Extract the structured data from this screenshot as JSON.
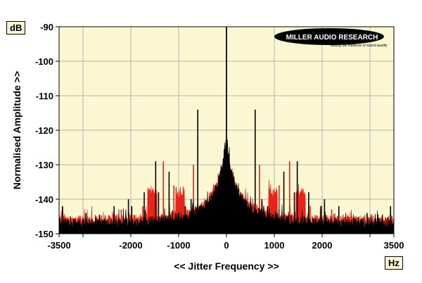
{
  "chart_data": {
    "type": "line",
    "xlabel": "<< Jitter Frequency >>",
    "ylabel": "Normalised Amplitude >>",
    "y_unit": "dB",
    "x_unit": "Hz",
    "xlim": [
      -3500,
      3500
    ],
    "ylim": [
      -150,
      -90
    ],
    "x_ticks": [
      -3500,
      -2000,
      -1000,
      0,
      1000,
      2000,
      3500
    ],
    "x_tick_labels": [
      "-3500",
      "-2000",
      "-1000",
      "0",
      "1000",
      "2000",
      "3500"
    ],
    "x_minor_ticks": [
      -3000,
      3000
    ],
    "y_ticks": [
      -90,
      -100,
      -110,
      -120,
      -130,
      -140,
      -150
    ],
    "y_tick_labels": [
      "-90",
      "-100",
      "-110",
      "-120",
      "-130",
      "-140",
      "-150"
    ],
    "grid": true,
    "background_color": "#fbf7d2",
    "grid_color": "#b4b4b4",
    "series": [
      {
        "color": "#e8231a",
        "noise_floor": -146,
        "skirt_peak": -125,
        "bands": [
          {
            "x": [
              -1650,
              -1450
            ],
            "level": -137
          },
          {
            "x": [
              -1060,
              -880
            ],
            "level": -137
          },
          {
            "x": [
              880,
              1060
            ],
            "level": -137
          },
          {
            "x": [
              1450,
              1650
            ],
            "level": -137
          }
        ],
        "spikes": [
          {
            "x": -2200,
            "y": -143
          },
          {
            "x": -1750,
            "y": -142
          },
          {
            "x": -1600,
            "y": -137
          },
          {
            "x": -1320,
            "y": -129
          },
          {
            "x": -1100,
            "y": -136
          },
          {
            "x": -690,
            "y": -130
          },
          {
            "x": 690,
            "y": -130
          },
          {
            "x": 1100,
            "y": -136
          },
          {
            "x": 1320,
            "y": -129
          },
          {
            "x": 1600,
            "y": -137
          },
          {
            "x": 1750,
            "y": -142
          },
          {
            "x": 2200,
            "y": -143
          }
        ]
      },
      {
        "color": "#000000",
        "noise_floor": -147,
        "skirt_peak": -124,
        "center_spike": {
          "x": 0,
          "y": -90
        },
        "spikes": [
          {
            "x": -3430,
            "y": -142
          },
          {
            "x": -2940,
            "y": -144
          },
          {
            "x": -2350,
            "y": -142
          },
          {
            "x": -2050,
            "y": -140
          },
          {
            "x": -1980,
            "y": -142
          },
          {
            "x": -1720,
            "y": -138
          },
          {
            "x": -1420,
            "y": -138
          },
          {
            "x": -1480,
            "y": -129
          },
          {
            "x": -1200,
            "y": -132
          },
          {
            "x": -1060,
            "y": -144
          },
          {
            "x": -860,
            "y": -142
          },
          {
            "x": -740,
            "y": -140
          },
          {
            "x": -600,
            "y": -114
          },
          {
            "x": 600,
            "y": -114
          },
          {
            "x": 740,
            "y": -140
          },
          {
            "x": 860,
            "y": -142
          },
          {
            "x": 1060,
            "y": -144
          },
          {
            "x": 1200,
            "y": -132
          },
          {
            "x": 1420,
            "y": -138
          },
          {
            "x": 1480,
            "y": -129
          },
          {
            "x": 1720,
            "y": -138
          },
          {
            "x": 1980,
            "y": -142
          },
          {
            "x": 2050,
            "y": -140
          },
          {
            "x": 2350,
            "y": -142
          },
          {
            "x": 2940,
            "y": -144
          },
          {
            "x": 3430,
            "y": -142
          }
        ]
      }
    ]
  },
  "logo": {
    "name": "MILLER AUDIO RESEARCH",
    "tagline": "Setting the measure of sound quality"
  }
}
